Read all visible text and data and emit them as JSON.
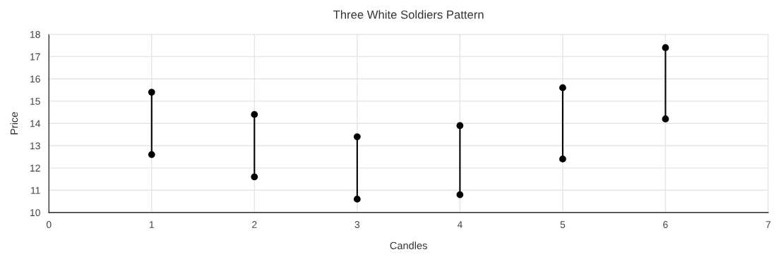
{
  "chart_data": {
    "type": "line",
    "title": "Three White Soldiers Pattern",
    "xlabel": "Candles",
    "ylabel": "Price",
    "series": [
      {
        "color": "#000000",
        "x": [
          1,
          1
        ],
        "values": [
          12.6,
          15.4
        ]
      },
      {
        "color": "#000000",
        "x": [
          2,
          2
        ],
        "values": [
          11.6,
          14.4
        ]
      },
      {
        "color": "#000000",
        "x": [
          3,
          3
        ],
        "values": [
          10.6,
          13.4
        ]
      },
      {
        "color": "#000000",
        "x": [
          4,
          4
        ],
        "values": [
          10.8,
          13.9
        ]
      },
      {
        "color": "#000000",
        "x": [
          5,
          5
        ],
        "values": [
          12.4,
          15.6
        ]
      },
      {
        "color": "#000000",
        "x": [
          6,
          6
        ],
        "values": [
          14.2,
          17.4
        ]
      }
    ],
    "xlim": [
      0,
      7
    ],
    "xticks": [
      0,
      1,
      2,
      3,
      4,
      5,
      6,
      7
    ],
    "ylim": [
      10,
      18
    ],
    "yticks": [
      10,
      11,
      12,
      13,
      14,
      15,
      16,
      17,
      18
    ],
    "grid": true,
    "marker": "circle",
    "line_style": "solid",
    "legend": false
  }
}
